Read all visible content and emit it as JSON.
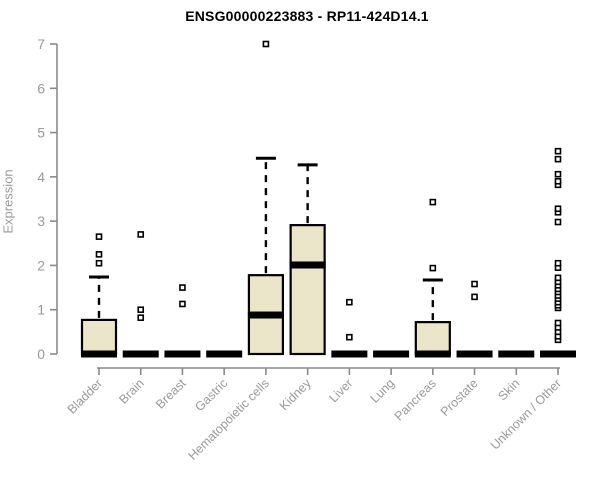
{
  "title": "ENSG00000223883 - RP11-424D14.1",
  "chart_data": {
    "type": "boxplot",
    "title": "ENSG00000223883 - RP11-424D14.1",
    "xlabel": "",
    "ylabel": "Expression",
    "ylim": [
      0,
      7
    ],
    "yticks": [
      0,
      1,
      2,
      3,
      4,
      5,
      6,
      7
    ],
    "grid": false,
    "legend": "none",
    "categories": [
      "Bladder",
      "Brain",
      "Breast",
      "Gastric",
      "Hematopoietic cells",
      "Kidney",
      "Liver",
      "Lung",
      "Pancreas",
      "Prostate",
      "Skin",
      "Unknown / Other"
    ],
    "series": [
      {
        "name": "Bladder",
        "q1": 0,
        "median": 0,
        "q3": 0.77,
        "whisker_low": 0,
        "whisker_high": 1.74,
        "outliers": [
          2.05,
          2.25,
          2.65
        ]
      },
      {
        "name": "Brain",
        "q1": 0,
        "median": 0,
        "q3": 0,
        "whisker_low": 0,
        "whisker_high": 0,
        "outliers": [
          0.82,
          1.0,
          2.7
        ]
      },
      {
        "name": "Breast",
        "q1": 0,
        "median": 0,
        "q3": 0,
        "whisker_low": 0,
        "whisker_high": 0,
        "outliers": [
          1.13,
          1.5
        ]
      },
      {
        "name": "Gastric",
        "q1": 0,
        "median": 0,
        "q3": 0,
        "whisker_low": 0,
        "whisker_high": 0,
        "outliers": []
      },
      {
        "name": "Hematopoietic cells",
        "q1": 0,
        "median": 0.88,
        "q3": 1.78,
        "whisker_low": 0,
        "whisker_high": 4.42,
        "outliers": [
          7.0
        ]
      },
      {
        "name": "Kidney",
        "q1": 0,
        "median": 2.01,
        "q3": 2.91,
        "whisker_low": 0,
        "whisker_high": 4.27,
        "outliers": []
      },
      {
        "name": "Liver",
        "q1": 0,
        "median": 0,
        "q3": 0,
        "whisker_low": 0,
        "whisker_high": 0,
        "outliers": [
          0.38,
          1.17
        ]
      },
      {
        "name": "Lung",
        "q1": 0,
        "median": 0,
        "q3": 0,
        "whisker_low": 0,
        "whisker_high": 0,
        "outliers": []
      },
      {
        "name": "Pancreas",
        "q1": 0,
        "median": 0,
        "q3": 0.72,
        "whisker_low": 0,
        "whisker_high": 1.67,
        "outliers": [
          1.94,
          3.43
        ]
      },
      {
        "name": "Prostate",
        "q1": 0,
        "median": 0,
        "q3": 0,
        "whisker_low": 0,
        "whisker_high": 0,
        "outliers": [
          1.29,
          1.58
        ]
      },
      {
        "name": "Skin",
        "q1": 0,
        "median": 0,
        "q3": 0,
        "whisker_low": 0,
        "whisker_high": 0,
        "outliers": []
      },
      {
        "name": "Unknown / Other",
        "q1": 0,
        "median": 0,
        "q3": 0,
        "whisker_low": 0,
        "whisker_high": 0,
        "outliers": [
          0.32,
          0.4,
          0.5,
          0.6,
          0.7,
          1.04,
          1.1,
          1.17,
          1.25,
          1.32,
          1.4,
          1.47,
          1.55,
          1.63,
          1.72,
          1.95,
          2.05,
          2.98,
          3.2,
          3.28,
          3.82,
          3.9,
          4.06,
          4.4,
          4.58
        ]
      }
    ],
    "colors": {
      "box_fill": "#EBE5CA",
      "box_stroke": "#000000",
      "median": "#000000",
      "outlier_stroke": "#000000",
      "outlier_fill": "#ffffff",
      "axis": "#8a8a8a",
      "tick_label": "#9a9a9a",
      "title": "#000000",
      "background": "#ffffff"
    }
  }
}
